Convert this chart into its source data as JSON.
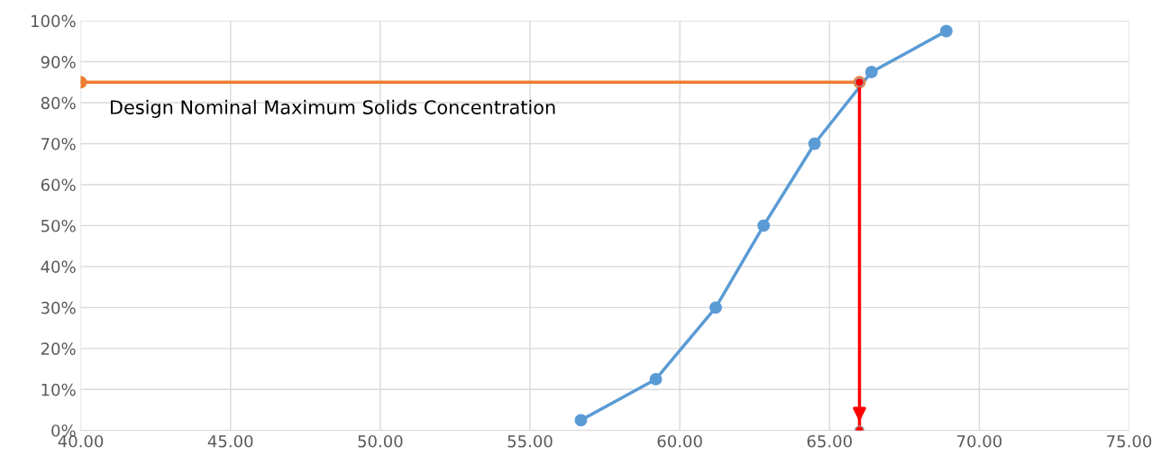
{
  "chart_data": {
    "type": "line",
    "marker": "circle",
    "line_style": "solid",
    "grid": true,
    "xlim": [
      40,
      75
    ],
    "xticks": [
      {
        "value": 40,
        "label": "40.00"
      },
      {
        "value": 45,
        "label": "45.00"
      },
      {
        "value": 50,
        "label": "50.00"
      },
      {
        "value": 55,
        "label": "55.00"
      },
      {
        "value": 60,
        "label": "60.00"
      },
      {
        "value": 65,
        "label": "65.00"
      },
      {
        "value": 70,
        "label": "70.00"
      },
      {
        "value": 75,
        "label": "75.00"
      }
    ],
    "ylim": [
      0,
      100
    ],
    "yticks": [
      {
        "value": 0,
        "label": "0%"
      },
      {
        "value": 10,
        "label": "10%"
      },
      {
        "value": 20,
        "label": "20%"
      },
      {
        "value": 30,
        "label": "30%"
      },
      {
        "value": 40,
        "label": "40%"
      },
      {
        "value": 50,
        "label": "50%"
      },
      {
        "value": 60,
        "label": "60%"
      },
      {
        "value": 70,
        "label": "70%"
      },
      {
        "value": 80,
        "label": "80%"
      },
      {
        "value": 90,
        "label": "90%"
      },
      {
        "value": 100,
        "label": "100%"
      }
    ],
    "series": [
      {
        "color": "#5b9bd5",
        "x": [
          56.7,
          59.2,
          61.2,
          62.8,
          64.5,
          66.4,
          68.9
        ],
        "values": [
          2.5,
          12.5,
          30,
          50,
          70,
          87.5,
          97.5
        ]
      },
      {
        "color": "#ed7d31",
        "x": [
          40,
          66.0
        ],
        "values": [
          85,
          85
        ]
      },
      {
        "color": "#ff0000",
        "x": [
          66.0,
          66.0
        ],
        "values": [
          85,
          0
        ]
      }
    ],
    "annotations": [
      "Design Nominal Maximum Solids Concentration"
    ]
  }
}
